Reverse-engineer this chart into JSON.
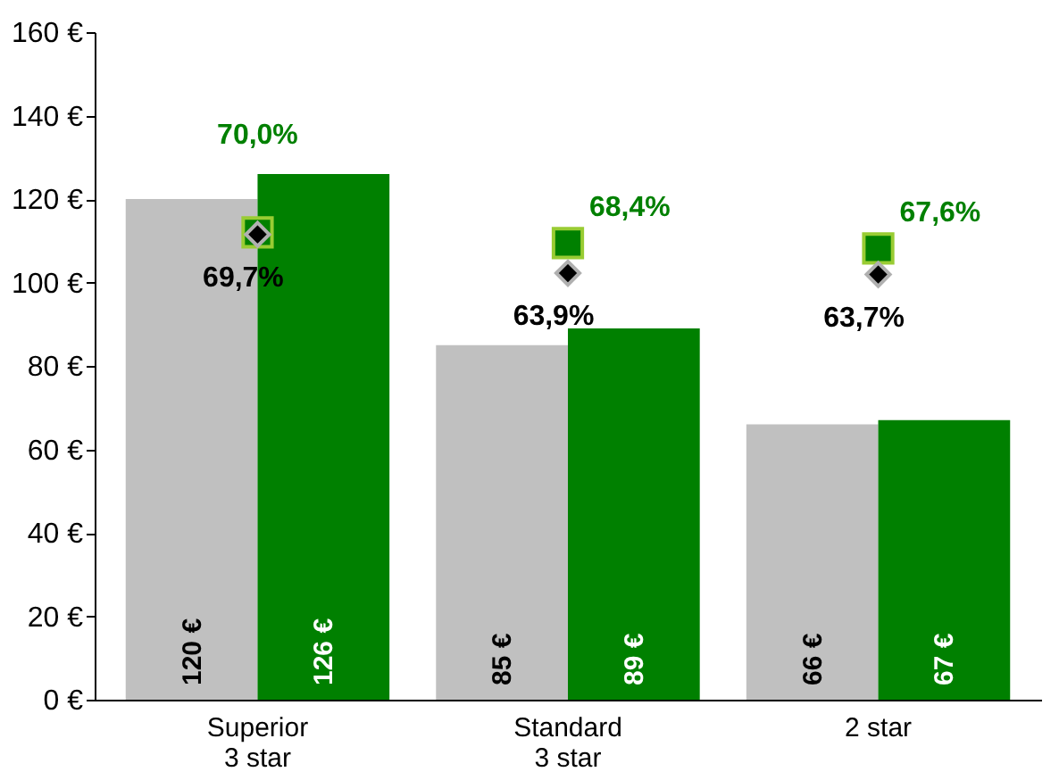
{
  "chart_data": {
    "type": "bar",
    "categories": [
      "Superior\n3 star",
      "Standard\n3 star",
      "2 star"
    ],
    "series": [
      {
        "color": "#c0c0c0",
        "values": [
          120,
          85,
          66
        ],
        "value_labels": [
          "120 €",
          "85 €",
          "66 €"
        ]
      },
      {
        "color": "#008000",
        "values": [
          126,
          89,
          67
        ],
        "value_labels": [
          "126 €",
          "89 €",
          "67 €"
        ]
      },
      {
        "type": "scatter",
        "axis": "y2",
        "marker": "square",
        "color": "#008000",
        "values": [
          70.0,
          68.4,
          67.6
        ],
        "value_labels": [
          "70,0%",
          "68,4%",
          "67,6%"
        ]
      },
      {
        "type": "scatter",
        "axis": "y2",
        "marker": "diamond",
        "color": "#000000",
        "values": [
          69.7,
          63.9,
          63.7
        ],
        "value_labels": [
          "69,7%",
          "63,9%",
          "63,7%"
        ]
      }
    ],
    "ylim": [
      0,
      160
    ],
    "yticks": [
      {
        "value": 0,
        "label": "0 €"
      },
      {
        "value": 20,
        "label": "20 €"
      },
      {
        "value": 40,
        "label": "40 €"
      },
      {
        "value": 60,
        "label": "60 €"
      },
      {
        "value": 80,
        "label": "80 €"
      },
      {
        "value": 100,
        "label": "100 €"
      },
      {
        "value": 120,
        "label": "120 €"
      },
      {
        "value": 140,
        "label": "140 €"
      },
      {
        "value": 160,
        "label": "160 €"
      }
    ],
    "y2lim": [
      0,
      100
    ],
    "grid": false
  }
}
